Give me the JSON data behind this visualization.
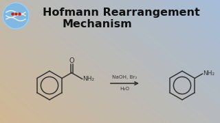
{
  "title_line1": "Hofmann Rearrangement",
  "title_line2": "Mechanism",
  "title_fontsize": 11.5,
  "title_color": "#111111",
  "reagents_above": "NaOH, Br₂",
  "reagents_below": "H₂O",
  "arrow_color": "#333333",
  "structure_color": "#333333",
  "logo_circle_color": "#7ab8e8",
  "bg_warm": [
    0.82,
    0.72,
    0.58
  ],
  "bg_cool": [
    0.65,
    0.74,
    0.85
  ],
  "figsize": [
    3.2,
    1.8
  ],
  "dpi": 100
}
